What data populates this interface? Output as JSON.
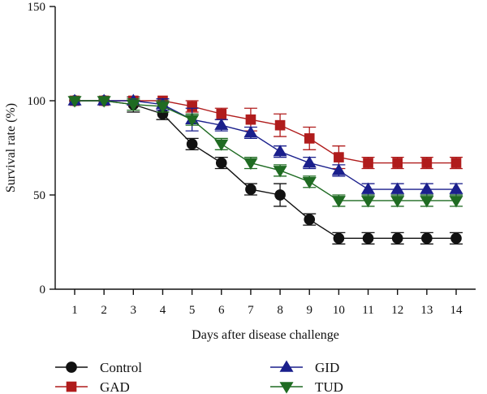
{
  "chart_data": {
    "type": "line",
    "xlabel": "Days after disease challenge",
    "ylabel": "Survival rate (%)",
    "x": [
      1,
      2,
      3,
      4,
      5,
      6,
      7,
      8,
      9,
      10,
      11,
      12,
      13,
      14
    ],
    "x_ticks": [
      "1",
      "2",
      "3",
      "4",
      "5",
      "6",
      "7",
      "8",
      "9",
      "10",
      "11",
      "12",
      "13",
      "14"
    ],
    "ylim": [
      0,
      150
    ],
    "y_ticks": [
      "0",
      "50",
      "100",
      "150"
    ],
    "y_tick_values": [
      0,
      50,
      100,
      150
    ],
    "grid": false,
    "legend_position": "bottom",
    "series": [
      {
        "name": "Control",
        "color": "#111111",
        "marker": "circle",
        "values": [
          100,
          100,
          98,
          93,
          77,
          67,
          53,
          50,
          37,
          27,
          27,
          27,
          27,
          27
        ],
        "errors": [
          0,
          0,
          4,
          3,
          3,
          3,
          3,
          6,
          3,
          3,
          3,
          3,
          3,
          3
        ]
      },
      {
        "name": "GAD",
        "color": "#b01c1c",
        "marker": "square",
        "values": [
          100,
          100,
          100,
          100,
          97,
          93,
          90,
          87,
          80,
          70,
          67,
          67,
          67,
          67
        ],
        "errors": [
          0,
          0,
          0,
          0,
          3,
          3,
          6,
          6,
          6,
          6,
          3,
          3,
          3,
          3
        ]
      },
      {
        "name": "GID",
        "color": "#1a1f8c",
        "marker": "triangle-up",
        "values": [
          100,
          100,
          100,
          98,
          90,
          87,
          83,
          73,
          67,
          63,
          53,
          53,
          53,
          53
        ],
        "errors": [
          0,
          0,
          0,
          3,
          6,
          3,
          3,
          3,
          3,
          3,
          3,
          3,
          3,
          3
        ]
      },
      {
        "name": "TUD",
        "color": "#1f6b22",
        "marker": "triangle-down",
        "values": [
          100,
          100,
          98,
          97,
          90,
          77,
          67,
          63,
          57,
          47,
          47,
          47,
          47,
          47
        ],
        "errors": [
          0,
          0,
          3,
          3,
          3,
          3,
          3,
          3,
          3,
          3,
          3,
          3,
          3,
          3
        ]
      }
    ]
  }
}
